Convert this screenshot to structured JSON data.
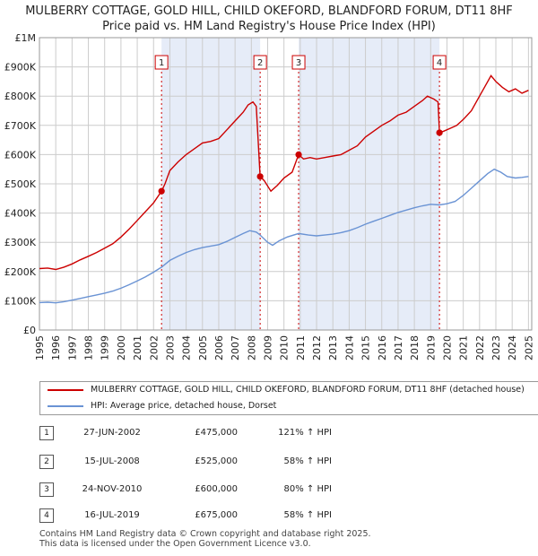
{
  "title_line1": "MULBERRY COTTAGE, GOLD HILL, CHILD OKEFORD, BLANDFORD FORUM, DT11 8HF",
  "title_line2": "Price paid vs. HM Land Registry's House Price Index (HPI)",
  "chart_data": {
    "type": "line",
    "xlim": [
      1995,
      2025.2
    ],
    "ylim": [
      0,
      1000000
    ],
    "y_ticks": [
      {
        "value": 0,
        "label": "£0"
      },
      {
        "value": 100000,
        "label": "£100K"
      },
      {
        "value": 200000,
        "label": "£200K"
      },
      {
        "value": 300000,
        "label": "£300K"
      },
      {
        "value": 400000,
        "label": "£400K"
      },
      {
        "value": 500000,
        "label": "£500K"
      },
      {
        "value": 600000,
        "label": "£600K"
      },
      {
        "value": 700000,
        "label": "£700K"
      },
      {
        "value": 800000,
        "label": "£800K"
      },
      {
        "value": 900000,
        "label": "£900K"
      },
      {
        "value": 1000000,
        "label": "£1M"
      }
    ],
    "x_ticks": [
      "1995",
      "1996",
      "1997",
      "1998",
      "1999",
      "2000",
      "2001",
      "2002",
      "2003",
      "2004",
      "2005",
      "2006",
      "2007",
      "2008",
      "2009",
      "2010",
      "2011",
      "2012",
      "2013",
      "2014",
      "2015",
      "2016",
      "2017",
      "2018",
      "2019",
      "2020",
      "2021",
      "2022",
      "2023",
      "2024",
      "2025"
    ],
    "shaded_ranges": [
      [
        2002.49,
        2008.54
      ],
      [
        2010.9,
        2019.54
      ]
    ],
    "series": [
      {
        "name": "MULBERRY COTTAGE, GOLD HILL, CHILD OKEFORD, BLANDFORD FORUM, DT11 8HF (detached house)",
        "color": "#cc0000",
        "points": [
          [
            1995.0,
            210000
          ],
          [
            1995.5,
            212000
          ],
          [
            1996.0,
            207000
          ],
          [
            1996.5,
            215000
          ],
          [
            1997.0,
            226000
          ],
          [
            1997.5,
            240000
          ],
          [
            1998.0,
            252000
          ],
          [
            1998.5,
            265000
          ],
          [
            1999.0,
            280000
          ],
          [
            1999.5,
            295000
          ],
          [
            2000.0,
            318000
          ],
          [
            2000.5,
            345000
          ],
          [
            2001.0,
            375000
          ],
          [
            2001.5,
            405000
          ],
          [
            2002.0,
            435000
          ],
          [
            2002.49,
            475000
          ],
          [
            2002.7,
            500000
          ],
          [
            2003.0,
            545000
          ],
          [
            2003.5,
            575000
          ],
          [
            2004.0,
            600000
          ],
          [
            2004.5,
            620000
          ],
          [
            2005.0,
            640000
          ],
          [
            2005.5,
            645000
          ],
          [
            2006.0,
            655000
          ],
          [
            2006.5,
            685000
          ],
          [
            2007.0,
            715000
          ],
          [
            2007.5,
            745000
          ],
          [
            2007.8,
            770000
          ],
          [
            2008.1,
            780000
          ],
          [
            2008.3,
            765000
          ],
          [
            2008.54,
            525000
          ],
          [
            2008.8,
            510000
          ],
          [
            2009.2,
            475000
          ],
          [
            2009.6,
            495000
          ],
          [
            2010.0,
            520000
          ],
          [
            2010.5,
            540000
          ],
          [
            2010.9,
            600000
          ],
          [
            2011.2,
            585000
          ],
          [
            2011.6,
            590000
          ],
          [
            2012.0,
            585000
          ],
          [
            2012.5,
            590000
          ],
          [
            2013.0,
            595000
          ],
          [
            2013.5,
            600000
          ],
          [
            2014.0,
            615000
          ],
          [
            2014.5,
            630000
          ],
          [
            2015.0,
            660000
          ],
          [
            2015.5,
            680000
          ],
          [
            2016.0,
            700000
          ],
          [
            2016.5,
            715000
          ],
          [
            2017.0,
            735000
          ],
          [
            2017.5,
            745000
          ],
          [
            2018.0,
            765000
          ],
          [
            2018.5,
            785000
          ],
          [
            2018.8,
            800000
          ],
          [
            2019.2,
            790000
          ],
          [
            2019.45,
            780000
          ],
          [
            2019.54,
            675000
          ],
          [
            2019.8,
            680000
          ],
          [
            2020.2,
            690000
          ],
          [
            2020.6,
            700000
          ],
          [
            2021.0,
            720000
          ],
          [
            2021.5,
            750000
          ],
          [
            2022.0,
            800000
          ],
          [
            2022.4,
            840000
          ],
          [
            2022.7,
            870000
          ],
          [
            2023.0,
            850000
          ],
          [
            2023.4,
            830000
          ],
          [
            2023.8,
            815000
          ],
          [
            2024.2,
            825000
          ],
          [
            2024.6,
            810000
          ],
          [
            2025.0,
            820000
          ]
        ]
      },
      {
        "name": "HPI: Average price, detached house, Dorset",
        "color": "#6a93d4",
        "points": [
          [
            1995.0,
            94000
          ],
          [
            1995.5,
            95000
          ],
          [
            1996.0,
            93000
          ],
          [
            1996.5,
            97000
          ],
          [
            1997.0,
            102000
          ],
          [
            1997.5,
            108000
          ],
          [
            1998.0,
            114000
          ],
          [
            1998.5,
            120000
          ],
          [
            1999.0,
            126000
          ],
          [
            1999.5,
            133000
          ],
          [
            2000.0,
            143000
          ],
          [
            2000.5,
            155000
          ],
          [
            2001.0,
            168000
          ],
          [
            2001.5,
            182000
          ],
          [
            2002.0,
            198000
          ],
          [
            2002.49,
            215000
          ],
          [
            2003.0,
            238000
          ],
          [
            2003.5,
            252000
          ],
          [
            2004.0,
            265000
          ],
          [
            2004.5,
            275000
          ],
          [
            2005.0,
            282000
          ],
          [
            2005.5,
            287000
          ],
          [
            2006.0,
            292000
          ],
          [
            2006.5,
            303000
          ],
          [
            2007.0,
            317000
          ],
          [
            2007.5,
            330000
          ],
          [
            2007.9,
            340000
          ],
          [
            2008.3,
            335000
          ],
          [
            2008.54,
            325000
          ],
          [
            2009.0,
            300000
          ],
          [
            2009.3,
            290000
          ],
          [
            2009.7,
            305000
          ],
          [
            2010.2,
            318000
          ],
          [
            2010.9,
            330000
          ],
          [
            2011.5,
            325000
          ],
          [
            2012.0,
            322000
          ],
          [
            2012.5,
            325000
          ],
          [
            2013.0,
            328000
          ],
          [
            2013.5,
            333000
          ],
          [
            2014.0,
            340000
          ],
          [
            2014.5,
            350000
          ],
          [
            2015.0,
            362000
          ],
          [
            2015.5,
            372000
          ],
          [
            2016.0,
            382000
          ],
          [
            2016.5,
            392000
          ],
          [
            2017.0,
            402000
          ],
          [
            2017.5,
            410000
          ],
          [
            2018.0,
            418000
          ],
          [
            2018.5,
            425000
          ],
          [
            2019.0,
            430000
          ],
          [
            2019.54,
            428000
          ],
          [
            2020.0,
            432000
          ],
          [
            2020.5,
            440000
          ],
          [
            2021.0,
            460000
          ],
          [
            2021.5,
            485000
          ],
          [
            2022.0,
            510000
          ],
          [
            2022.5,
            535000
          ],
          [
            2022.9,
            550000
          ],
          [
            2023.3,
            540000
          ],
          [
            2023.7,
            525000
          ],
          [
            2024.2,
            520000
          ],
          [
            2024.6,
            522000
          ],
          [
            2025.0,
            525000
          ]
        ]
      }
    ],
    "sales": [
      {
        "label": "1",
        "x": 2002.49,
        "value": 475000
      },
      {
        "label": "2",
        "x": 2008.54,
        "value": 525000
      },
      {
        "label": "3",
        "x": 2010.9,
        "value": 600000
      },
      {
        "label": "4",
        "x": 2019.54,
        "value": 675000
      }
    ]
  },
  "legend": {
    "property": "MULBERRY COTTAGE, GOLD HILL, CHILD OKEFORD, BLANDFORD FORUM, DT11 8HF (detached house)",
    "hpi": "HPI: Average price, detached house, Dorset"
  },
  "transactions": [
    {
      "num": "1",
      "date": "27-JUN-2002",
      "price": "£475,000",
      "hpi": "121% ↑ HPI"
    },
    {
      "num": "2",
      "date": "15-JUL-2008",
      "price": "£525,000",
      "hpi": "58% ↑ HPI"
    },
    {
      "num": "3",
      "date": "24-NOV-2010",
      "price": "£600,000",
      "hpi": "80% ↑ HPI"
    },
    {
      "num": "4",
      "date": "16-JUL-2019",
      "price": "£675,000",
      "hpi": "58% ↑ HPI"
    }
  ],
  "footer_line1": "Contains HM Land Registry data © Crown copyright and database right 2025.",
  "footer_line2": "This data is licensed under the Open Government Licence v3.0."
}
